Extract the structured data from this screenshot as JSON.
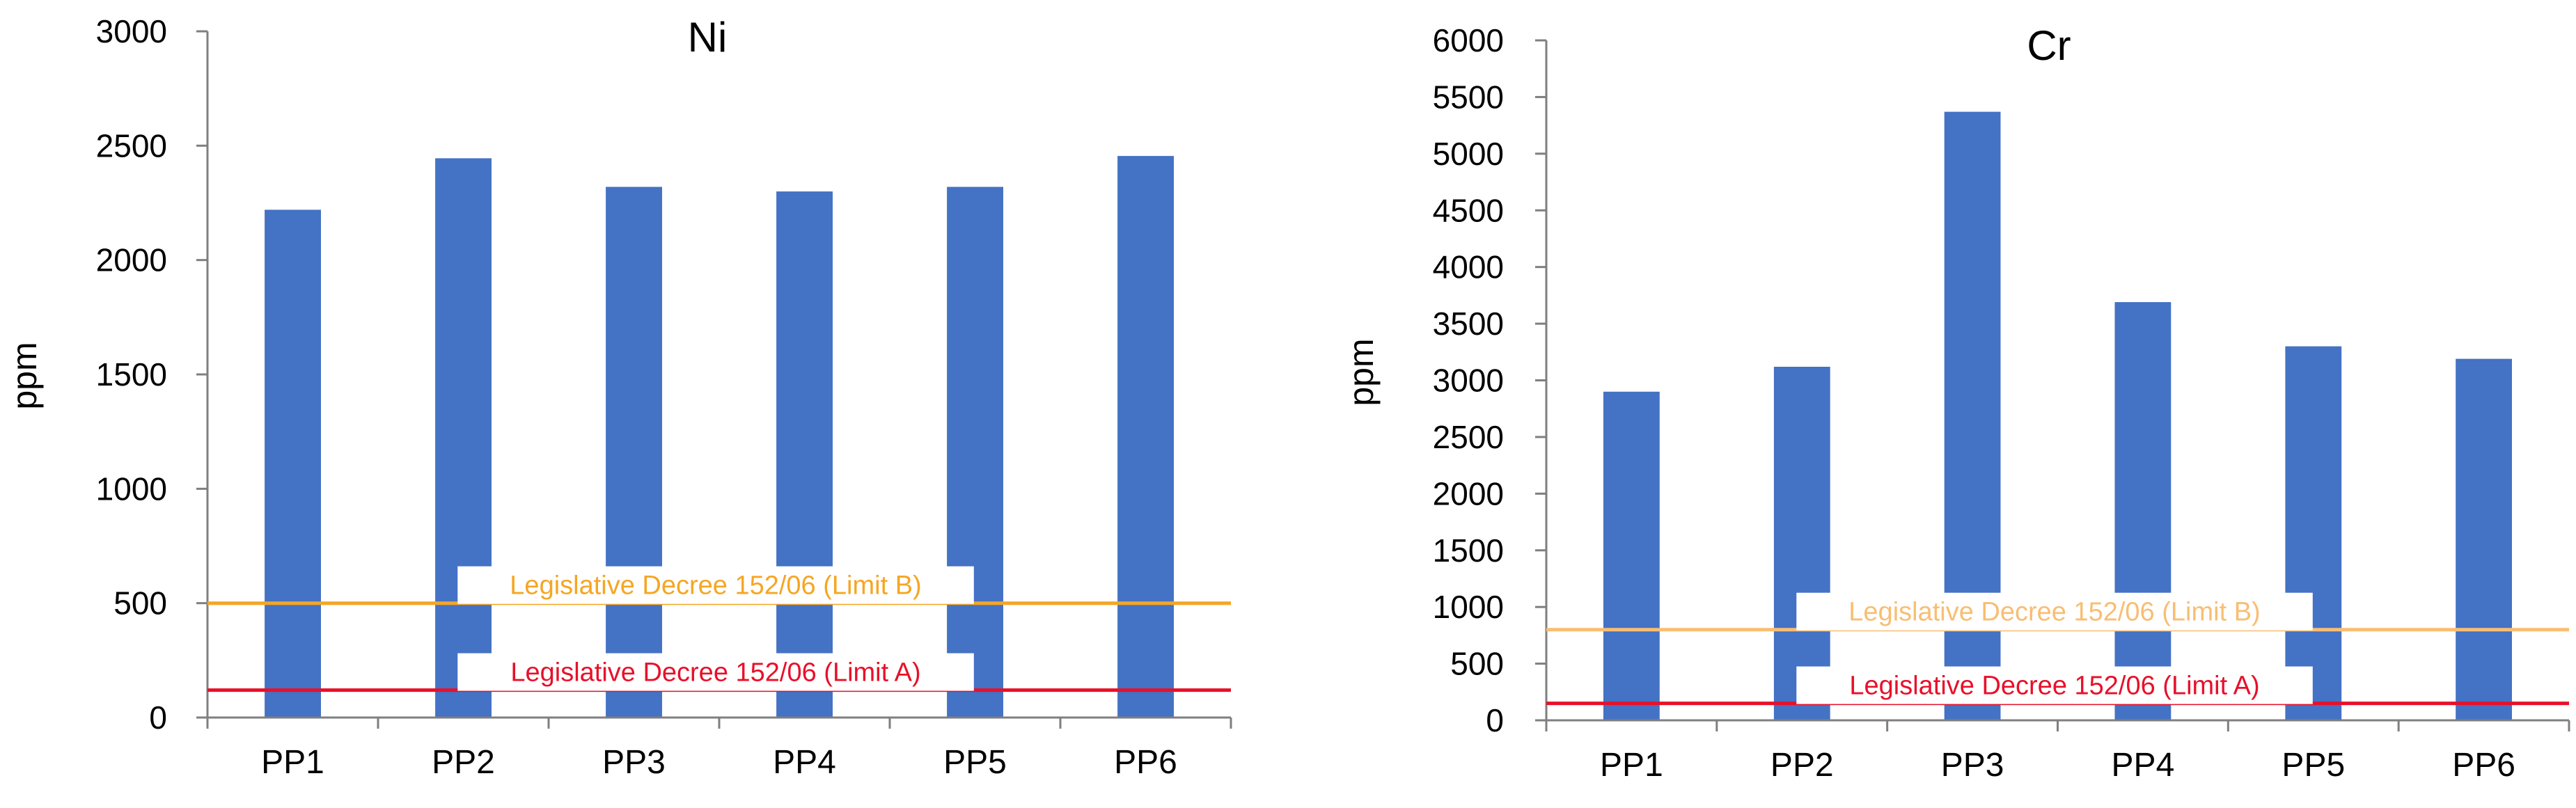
{
  "chart_data": [
    {
      "type": "bar",
      "title": "Ni",
      "xlabel": "",
      "ylabel": "ppm",
      "categories": [
        "PP1",
        "PP2",
        "PP3",
        "PP4",
        "PP5",
        "PP6"
      ],
      "values": [
        2220,
        2445,
        2320,
        2300,
        2320,
        2455
      ],
      "ylim": [
        0,
        3000
      ],
      "yticks": [
        0,
        500,
        1000,
        1500,
        2000,
        2500,
        3000
      ],
      "grid": false,
      "bar_color": "#4472C4",
      "reference_lines": [
        {
          "label": "Legislative Decree 152/06 (Limit B)",
          "value": 500,
          "color": "#F5A623"
        },
        {
          "label": "Legislative Decree 152/06 (Limit A)",
          "value": 120,
          "color": "#E8102A"
        }
      ]
    },
    {
      "type": "bar",
      "title": "Cr",
      "xlabel": "",
      "ylabel": "ppm",
      "categories": [
        "PP1",
        "PP2",
        "PP3",
        "PP4",
        "PP5",
        "PP6"
      ],
      "values": [
        2900,
        3120,
        5370,
        3690,
        3300,
        3190
      ],
      "ylim": [
        0,
        6000
      ],
      "yticks": [
        0,
        500,
        1000,
        1500,
        2000,
        2500,
        3000,
        3500,
        4000,
        4500,
        5000,
        5500,
        6000
      ],
      "grid": false,
      "bar_color": "#4472C4",
      "reference_lines": [
        {
          "label": "Legislative Decree 152/06 (Limit B)",
          "value": 800,
          "color": "#F8BE73"
        },
        {
          "label": "Legislative Decree 152/06 (Limit A)",
          "value": 150,
          "color": "#E8102A"
        }
      ]
    }
  ]
}
